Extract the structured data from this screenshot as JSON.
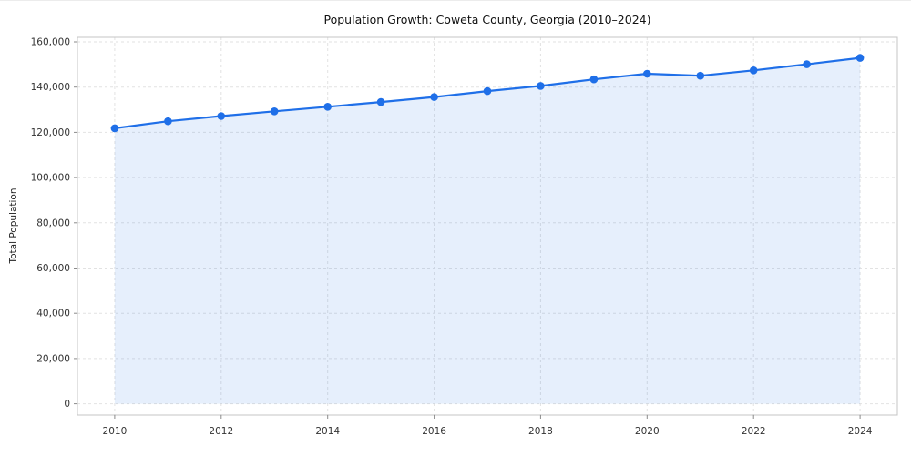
{
  "chart_data": {
    "type": "area",
    "title": "Population Growth: Coweta County, Georgia (2010–2024)",
    "xlabel": "",
    "ylabel": "Total Population",
    "x": [
      2010,
      2011,
      2012,
      2013,
      2014,
      2015,
      2016,
      2017,
      2018,
      2019,
      2020,
      2021,
      2022,
      2023,
      2024
    ],
    "values": [
      121800,
      124900,
      127200,
      129300,
      131300,
      133400,
      135600,
      138200,
      140500,
      143400,
      145900,
      145000,
      147400,
      150100,
      152900
    ],
    "xticks": [
      2010,
      2012,
      2014,
      2016,
      2018,
      2020,
      2022,
      2024
    ],
    "yticks": [
      0,
      20000,
      40000,
      60000,
      80000,
      100000,
      120000,
      140000,
      160000
    ],
    "xlim": [
      2009.3,
      2024.7
    ],
    "ylim": [
      0,
      160000
    ],
    "grid": true,
    "grid_style": "dashed",
    "legend": "none",
    "marker": "circle",
    "line_color": "#1f6fe8",
    "fill_color": "#1f6fe8",
    "fill_opacity": 0.11,
    "grid_color": "#e2e2e2",
    "spine_color": "#c4c4c4",
    "tick_color": "#8a8a8a",
    "label_color": "#333333"
  }
}
